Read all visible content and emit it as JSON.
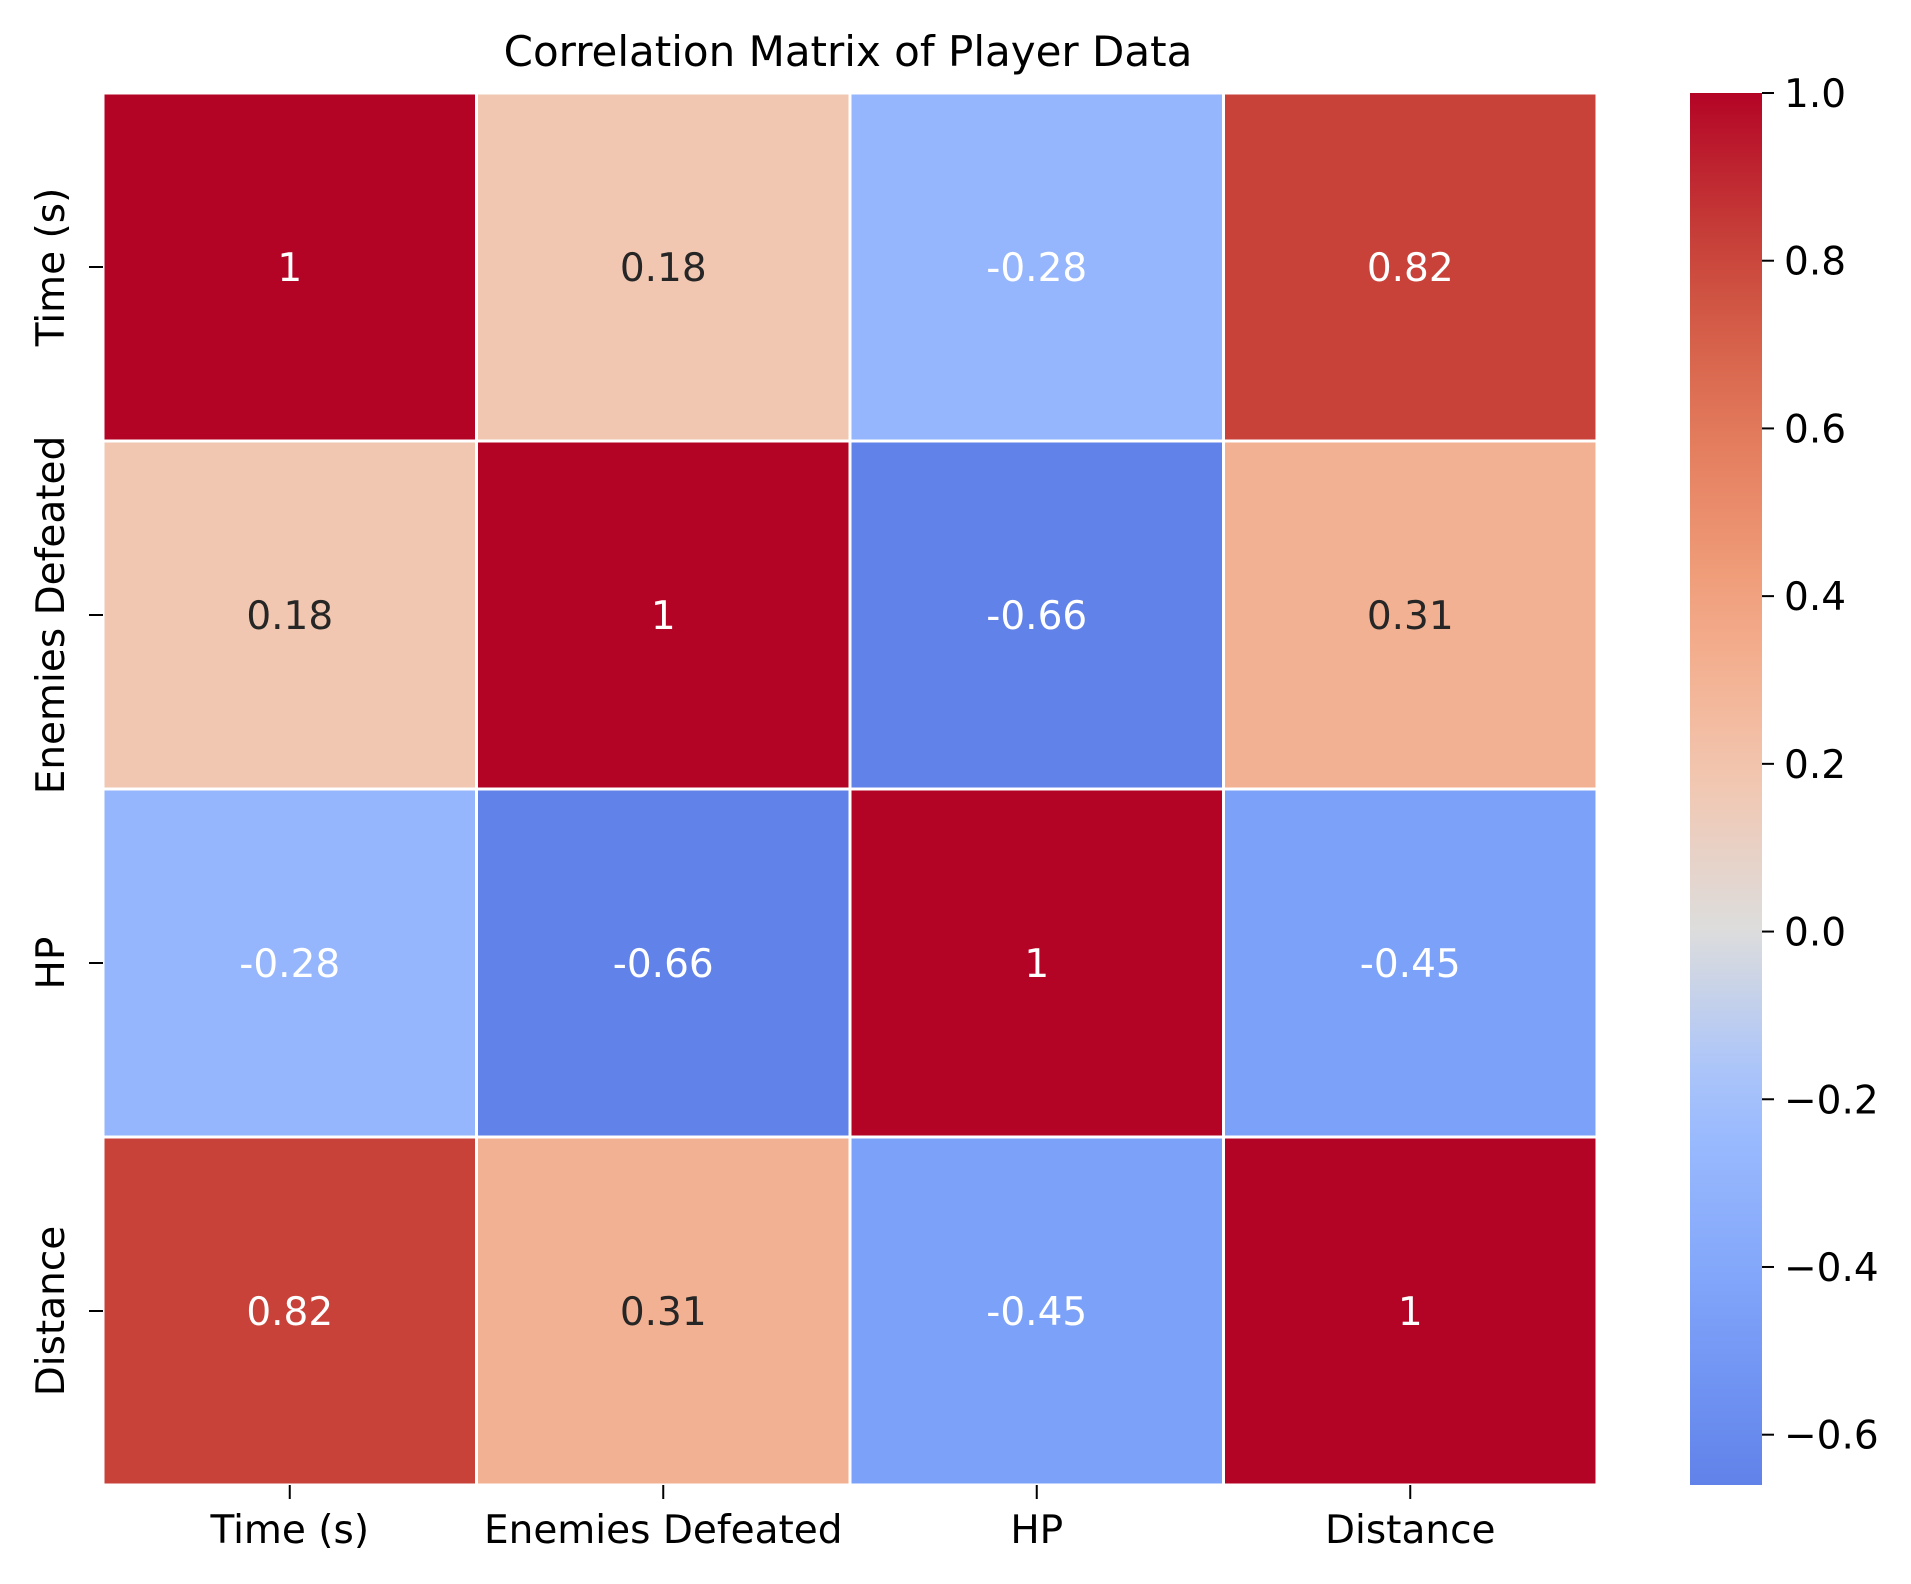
{
  "chart_data": {
    "type": "heatmap",
    "title": "Correlation Matrix of Player Data",
    "xlabel": "",
    "ylabel": "",
    "x_categories": [
      "Time (s)",
      "Enemies Defeated",
      "HP",
      "Distance"
    ],
    "y_categories": [
      "Time (s)",
      "Enemies Defeated",
      "HP",
      "Distance"
    ],
    "values": [
      [
        1,
        0.18,
        -0.28,
        0.82
      ],
      [
        0.18,
        1,
        -0.66,
        0.31
      ],
      [
        -0.28,
        -0.66,
        1,
        -0.45
      ],
      [
        0.82,
        0.31,
        -0.45,
        1
      ]
    ],
    "cell_labels": [
      [
        "1",
        "0.18",
        "-0.28",
        "0.82"
      ],
      [
        "0.18",
        "1",
        "-0.66",
        "0.31"
      ],
      [
        "-0.28",
        "-0.66",
        "1",
        "-0.45"
      ],
      [
        "0.82",
        "0.31",
        "-0.45",
        "1"
      ]
    ],
    "colormap": "coolwarm",
    "colorbar": {
      "vmin": -0.66,
      "vmax": 1.0,
      "ticks": [
        1.0,
        0.8,
        0.6,
        0.4,
        0.2,
        0.0,
        -0.2,
        -0.4,
        -0.6
      ],
      "tick_labels": [
        "1.0",
        "0.8",
        "0.6",
        "0.4",
        "0.2",
        "0.0",
        "−0.2",
        "−0.4",
        "−0.6"
      ]
    },
    "grid": false,
    "cell_border_color": "#ffffff"
  }
}
